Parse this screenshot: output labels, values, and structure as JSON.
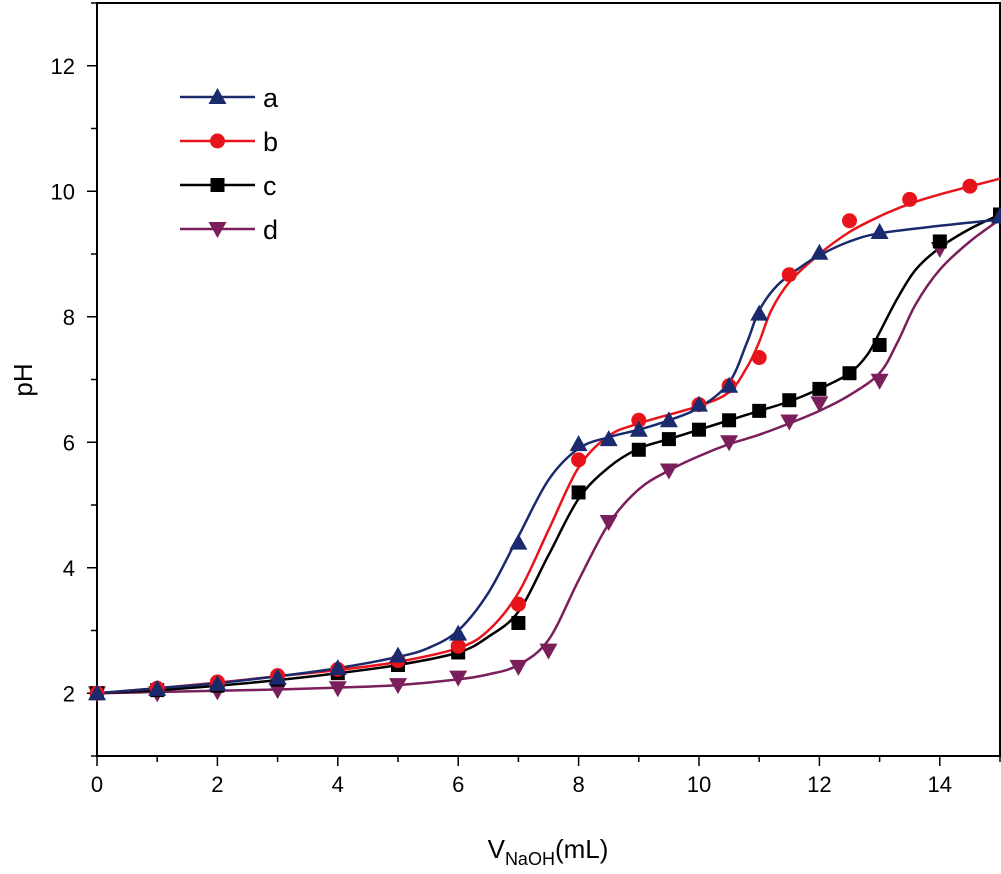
{
  "chart_data": {
    "type": "line",
    "xlabel_main": "V",
    "xlabel_sub": "NaOH",
    "xlabel_unit": "(mL)",
    "ylabel": "pH",
    "xlim": [
      0,
      15
    ],
    "ylim": [
      1,
      13
    ],
    "xticks": [
      0,
      2,
      4,
      6,
      8,
      10,
      12,
      14
    ],
    "yticks": [
      2,
      4,
      6,
      8,
      10,
      12
    ],
    "legend_position": "top-left",
    "series": [
      {
        "name": "a",
        "color": "#1a2a6c",
        "marker": "triangle-up",
        "x": [
          0,
          1,
          2,
          3,
          4,
          5,
          6,
          7,
          8,
          8.5,
          9,
          9.5,
          10,
          10.5,
          11,
          12,
          13,
          15
        ],
        "y": [
          2.0,
          2.07,
          2.15,
          2.25,
          2.4,
          2.6,
          2.95,
          4.4,
          5.97,
          6.05,
          6.2,
          6.35,
          6.6,
          6.9,
          8.05,
          9.02,
          9.35,
          9.6
        ],
        "curve": [
          [
            0,
            2.0
          ],
          [
            1,
            2.08
          ],
          [
            2,
            2.16
          ],
          [
            3,
            2.27
          ],
          [
            4,
            2.4
          ],
          [
            5,
            2.58
          ],
          [
            5.5,
            2.72
          ],
          [
            6,
            3.0
          ],
          [
            6.5,
            3.6
          ],
          [
            7,
            4.5
          ],
          [
            7.5,
            5.4
          ],
          [
            8,
            5.9
          ],
          [
            8.5,
            6.08
          ],
          [
            9,
            6.2
          ],
          [
            9.5,
            6.35
          ],
          [
            10,
            6.55
          ],
          [
            10.5,
            6.95
          ],
          [
            10.8,
            7.6
          ],
          [
            11,
            8.1
          ],
          [
            11.3,
            8.5
          ],
          [
            11.7,
            8.8
          ],
          [
            12,
            8.98
          ],
          [
            12.5,
            9.2
          ],
          [
            13,
            9.33
          ],
          [
            14,
            9.45
          ],
          [
            15,
            9.55
          ]
        ]
      },
      {
        "name": "b",
        "color": "#e8141c",
        "marker": "circle",
        "x": [
          0,
          1,
          2,
          3,
          4,
          5,
          6,
          7,
          8,
          9,
          10,
          10.5,
          11,
          11.5,
          12.5,
          13.5,
          14.5
        ],
        "y": [
          2.0,
          2.08,
          2.18,
          2.28,
          2.38,
          2.52,
          2.75,
          3.42,
          5.72,
          6.35,
          6.6,
          6.9,
          7.35,
          8.67,
          9.53,
          9.87,
          10.08
        ],
        "curve": [
          [
            0,
            2.0
          ],
          [
            1,
            2.08
          ],
          [
            2,
            2.17
          ],
          [
            3,
            2.27
          ],
          [
            4,
            2.37
          ],
          [
            5,
            2.5
          ],
          [
            6,
            2.72
          ],
          [
            6.5,
            3.0
          ],
          [
            7,
            3.6
          ],
          [
            7.5,
            4.6
          ],
          [
            8,
            5.6
          ],
          [
            8.5,
            6.1
          ],
          [
            9,
            6.3
          ],
          [
            10,
            6.58
          ],
          [
            10.5,
            6.8
          ],
          [
            10.8,
            7.2
          ],
          [
            11,
            7.6
          ],
          [
            11.2,
            8.1
          ],
          [
            11.5,
            8.55
          ],
          [
            12,
            9.0
          ],
          [
            12.5,
            9.35
          ],
          [
            13,
            9.6
          ],
          [
            13.5,
            9.8
          ],
          [
            14,
            9.95
          ],
          [
            15,
            10.2
          ]
        ]
      },
      {
        "name": "c",
        "color": "#000000",
        "marker": "square",
        "x": [
          0,
          1,
          2,
          3,
          4,
          5,
          6,
          7,
          8,
          9,
          9.5,
          10,
          10.5,
          11,
          11.5,
          12,
          12.5,
          13,
          14,
          15
        ],
        "y": [
          2.0,
          2.05,
          2.12,
          2.22,
          2.32,
          2.45,
          2.65,
          3.12,
          5.2,
          5.88,
          6.05,
          6.2,
          6.35,
          6.5,
          6.67,
          6.85,
          7.1,
          7.55,
          9.2,
          9.63
        ],
        "curve": [
          [
            0,
            2.0
          ],
          [
            1,
            2.05
          ],
          [
            2,
            2.12
          ],
          [
            3,
            2.21
          ],
          [
            4,
            2.32
          ],
          [
            5,
            2.45
          ],
          [
            6,
            2.65
          ],
          [
            6.5,
            2.9
          ],
          [
            7,
            3.3
          ],
          [
            7.5,
            4.2
          ],
          [
            8,
            5.1
          ],
          [
            8.5,
            5.6
          ],
          [
            9,
            5.9
          ],
          [
            9.5,
            6.05
          ],
          [
            10,
            6.2
          ],
          [
            10.5,
            6.35
          ],
          [
            11,
            6.5
          ],
          [
            11.5,
            6.65
          ],
          [
            12,
            6.85
          ],
          [
            12.5,
            7.1
          ],
          [
            12.8,
            7.4
          ],
          [
            13,
            7.75
          ],
          [
            13.3,
            8.3
          ],
          [
            13.6,
            8.75
          ],
          [
            14,
            9.1
          ],
          [
            14.5,
            9.4
          ],
          [
            15,
            9.63
          ]
        ]
      },
      {
        "name": "d",
        "color": "#7a1f5c",
        "marker": "triangle-down",
        "x": [
          0,
          1,
          2,
          3,
          4,
          5,
          6,
          7,
          7.5,
          8.5,
          9.5,
          10.5,
          11.5,
          12,
          13,
          14
        ],
        "y": [
          2.0,
          2.0,
          2.03,
          2.05,
          2.08,
          2.13,
          2.25,
          2.42,
          2.68,
          4.73,
          5.55,
          6.0,
          6.33,
          6.62,
          6.98,
          9.08
        ],
        "curve": [
          [
            0,
            2.0
          ],
          [
            1,
            2.02
          ],
          [
            2,
            2.04
          ],
          [
            3,
            2.06
          ],
          [
            4,
            2.09
          ],
          [
            5,
            2.13
          ],
          [
            6,
            2.22
          ],
          [
            6.5,
            2.3
          ],
          [
            7,
            2.45
          ],
          [
            7.5,
            2.85
          ],
          [
            8,
            3.8
          ],
          [
            8.5,
            4.7
          ],
          [
            9,
            5.25
          ],
          [
            9.5,
            5.55
          ],
          [
            10,
            5.78
          ],
          [
            10.5,
            5.97
          ],
          [
            11,
            6.12
          ],
          [
            11.5,
            6.3
          ],
          [
            12,
            6.5
          ],
          [
            12.5,
            6.75
          ],
          [
            13,
            7.1
          ],
          [
            13.3,
            7.6
          ],
          [
            13.6,
            8.2
          ],
          [
            14,
            8.75
          ],
          [
            14.5,
            9.2
          ],
          [
            15,
            9.55
          ]
        ]
      }
    ]
  }
}
